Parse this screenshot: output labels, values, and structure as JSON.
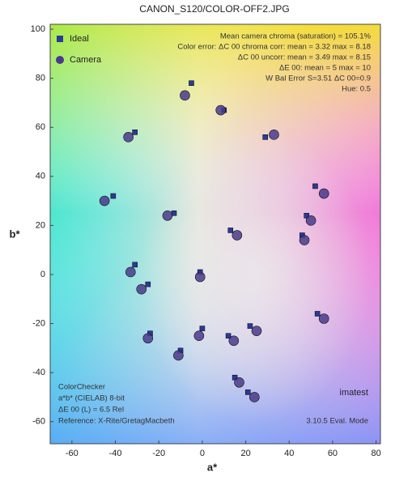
{
  "chart_data": {
    "type": "scatter",
    "title": "CANON_S120/COLOR-OFF2.JPG",
    "x_label": "a*",
    "y_label": "b*",
    "xlim": [
      -70,
      82
    ],
    "ylim": [
      -69,
      102
    ],
    "xticks": [
      -60,
      -40,
      -20,
      0,
      20,
      40,
      60,
      80
    ],
    "yticks": [
      -60,
      -40,
      -20,
      0,
      20,
      40,
      60,
      80,
      100
    ],
    "annotations_top": [
      "Mean camera chroma (saturation) = 105.1%",
      "Color error: ΔC 00 chroma corr: mean = 3.32  max = 8.18",
      "ΔC 00 uncorr: mean = 3.49  max = 8.15",
      "ΔE 00: mean = 5  max = 10",
      "W Bal Error S=3.51 ΔC 00=0.9",
      "Hue: 0.5"
    ],
    "annotations_bottom": [
      "ColorChecker",
      "a*b* (CIELAB) 8-bit",
      "ΔE 00 (L) = 6.5 Rel",
      "Reference: X-Rite/GretagMacbeth"
    ],
    "logo": "imatest",
    "footer": "3.10.5 Eval. Mode",
    "series": [
      {
        "name": "Ideal",
        "color": "#2a3a9a",
        "marker": "square",
        "x": [
          -5,
          10,
          -31,
          29,
          -41,
          -13,
          52,
          13,
          48,
          46,
          -1,
          -25,
          53,
          22,
          0,
          12,
          -24,
          -10,
          15,
          21,
          -31
        ],
        "y": [
          78,
          67,
          58,
          56,
          32,
          25,
          36,
          18,
          24,
          16,
          1,
          -4,
          -16,
          -21,
          -22,
          -25,
          -24,
          -31,
          -42,
          -48,
          4
        ]
      },
      {
        "name": "Camera",
        "color": "#4a3a8c",
        "marker": "circle",
        "x": [
          -8,
          8.5,
          -34,
          33,
          -45,
          -16,
          56,
          16,
          50,
          47,
          -1,
          -28,
          56,
          25,
          -1.5,
          14.5,
          -25,
          -11,
          17,
          24,
          -33
        ],
        "y": [
          73,
          67,
          56,
          57,
          30,
          24,
          33,
          16,
          22,
          14,
          -1,
          -6,
          -18,
          -23,
          -25,
          -27,
          -26,
          -33,
          -44,
          -50,
          1
        ]
      }
    ]
  }
}
